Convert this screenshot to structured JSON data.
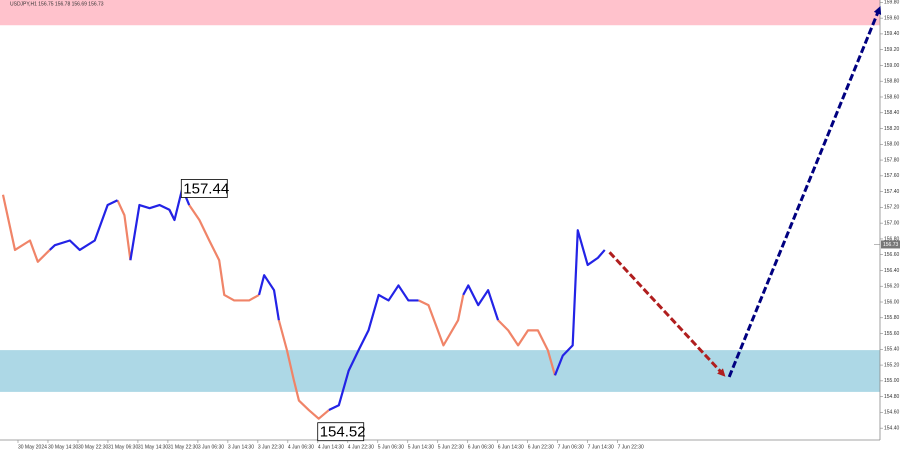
{
  "chart_data": {
    "type": "line",
    "title": "USDJPY,H1  156.75 156.78 156.69 156.73",
    "x": [
      -0.5,
      -0.1,
      0.4,
      0.66,
      1.06,
      1.23,
      1.73,
      2.06,
      2.56,
      2.99,
      3.32,
      3.55,
      3.75,
      4.05,
      4.39,
      4.72,
      5.05,
      5.22,
      5.48,
      5.71,
      6.05,
      6.38,
      6.71,
      6.88,
      7.21,
      7.71,
      8.04,
      8.21,
      8.54,
      8.7,
      8.97,
      9.2,
      9.37,
      9.7,
      10.03,
      10.37,
      10.7,
      11.03,
      11.36,
      11.69,
      12.03,
      12.36,
      12.69,
      13.02,
      13.36,
      13.69,
      14.19,
      14.68,
      14.85,
      15.02,
      15.35,
      15.68,
      16.01,
      16.35,
      16.68,
      17.01,
      17.34,
      17.67,
      17.91,
      18.17,
      18.5,
      18.67,
      19.0,
      19.34,
      19.57
    ],
    "series": [
      {
        "color": "#f08468",
        "values": [
          157.36,
          156.66,
          156.78,
          156.51,
          156.66,
          null,
          null,
          null,
          null,
          null,
          157.29,
          157.1,
          156.53,
          null,
          null,
          null,
          157.17,
          157.04,
          null,
          157.23,
          157.04,
          156.78,
          156.53,
          156.09,
          156.02,
          156.02,
          156.09,
          null,
          null,
          155.77,
          155.39,
          155.01,
          154.75,
          154.63,
          154.52,
          154.63,
          null,
          null,
          null,
          null,
          null,
          null,
          null,
          null,
          156.02,
          155.96,
          155.45,
          155.77,
          156.09,
          null,
          null,
          null,
          155.77,
          155.64,
          155.45,
          155.64,
          155.64,
          155.39,
          155.07,
          null,
          null,
          null,
          null,
          null,
          null
        ]
      },
      {
        "color": "#2323e6",
        "values": [
          null,
          null,
          null,
          null,
          156.66,
          156.72,
          156.78,
          156.66,
          156.78,
          157.23,
          157.29,
          null,
          156.53,
          157.23,
          157.19,
          157.23,
          157.17,
          157.04,
          157.44,
          157.23,
          null,
          null,
          null,
          null,
          null,
          null,
          156.09,
          156.34,
          156.15,
          155.77,
          null,
          null,
          null,
          null,
          null,
          154.63,
          154.69,
          155.13,
          155.39,
          155.64,
          156.09,
          156.02,
          156.21,
          156.02,
          156.02,
          null,
          null,
          null,
          156.09,
          156.21,
          155.96,
          156.15,
          155.77,
          null,
          null,
          null,
          null,
          null,
          155.07,
          155.32,
          155.45,
          156.91,
          156.47,
          156.56,
          156.66
        ]
      }
    ],
    "current_price": 156.73,
    "zones": [
      {
        "range": [
          159.51,
          159.83
        ],
        "color": "#ffc2cc"
      },
      {
        "range": [
          154.86,
          155.39
        ],
        "color": "#add8e6"
      }
    ],
    "arrows": [
      {
        "from": [
          19.73,
          156.63
        ],
        "to": [
          23.55,
          155.07
        ],
        "color": "#b01e1e"
      },
      {
        "from": [
          23.72,
          155.05
        ],
        "to": [
          28.74,
          159.73
        ],
        "color": "#000080"
      }
    ],
    "xlim": [
      -0.6,
      28.75
    ],
    "ylim": [
      154.25,
      159.83
    ],
    "xticks": [
      {
        "value": 0,
        "label": "30 May 2024"
      },
      {
        "value": 1,
        "label": "30 May 14:30"
      },
      {
        "value": 2,
        "label": "30 May 22:30"
      },
      {
        "value": 3,
        "label": "31 May 06:30"
      },
      {
        "value": 4,
        "label": "31 May 14:30"
      },
      {
        "value": 5,
        "label": "31 May 22:30"
      },
      {
        "value": 6,
        "label": "3 Jun 06:30"
      },
      {
        "value": 7,
        "label": "3 Jun 14:30"
      },
      {
        "value": 8,
        "label": "3 Jun 22:30"
      },
      {
        "value": 9,
        "label": "4 Jun 06:30"
      },
      {
        "value": 10,
        "label": "4 Jun 14:30"
      },
      {
        "value": 11,
        "label": "4 Jun 22:30"
      },
      {
        "value": 12,
        "label": "5 Jun 06:30"
      },
      {
        "value": 13,
        "label": "5 Jun 14:30"
      },
      {
        "value": 14,
        "label": "5 Jun 22:30"
      },
      {
        "value": 15,
        "label": "6 Jun 06:30"
      },
      {
        "value": 16,
        "label": "6 Jun 14:30"
      },
      {
        "value": 17,
        "label": "6 Jun 22:30"
      },
      {
        "value": 18,
        "label": "7 Jun 06:30"
      },
      {
        "value": 19,
        "label": "7 Jun 14:30"
      },
      {
        "value": 20,
        "label": "7 Jun 22:30"
      }
    ],
    "yticks": [
      {
        "value": 154.4,
        "label": "154.40"
      },
      {
        "value": 154.6,
        "label": "154.60"
      },
      {
        "value": 154.8,
        "label": "154.80"
      },
      {
        "value": 155,
        "label": "155.00"
      },
      {
        "value": 155.2,
        "label": "155.20"
      },
      {
        "value": 155.4,
        "label": "155.40"
      },
      {
        "value": 155.6,
        "label": "155.60"
      },
      {
        "value": 155.8,
        "label": "155.80"
      },
      {
        "value": 156,
        "label": "156.00"
      },
      {
        "value": 156.2,
        "label": "156.20"
      },
      {
        "value": 156.4,
        "label": "156.40"
      },
      {
        "value": 156.6,
        "label": "156.60"
      },
      {
        "value": 156.8,
        "label": "156.80"
      },
      {
        "value": 157,
        "label": "157.00"
      },
      {
        "value": 157.2,
        "label": "157.20"
      },
      {
        "value": 157.4,
        "label": "157.40"
      },
      {
        "value": 157.6,
        "label": "157.60"
      },
      {
        "value": 157.8,
        "label": "157.80"
      },
      {
        "value": 158,
        "label": "158.00"
      },
      {
        "value": 158.2,
        "label": "158.20"
      },
      {
        "value": 158.4,
        "label": "158.40"
      },
      {
        "value": 158.6,
        "label": "158.60"
      },
      {
        "value": 158.8,
        "label": "158.80"
      },
      {
        "value": 159,
        "label": "159.00"
      },
      {
        "value": 159.2,
        "label": "159.20"
      },
      {
        "value": 159.4,
        "label": "159.40"
      },
      {
        "value": 159.6,
        "label": "159.60"
      },
      {
        "value": 159.8,
        "label": "159.80"
      }
    ],
    "grid": false
  }
}
